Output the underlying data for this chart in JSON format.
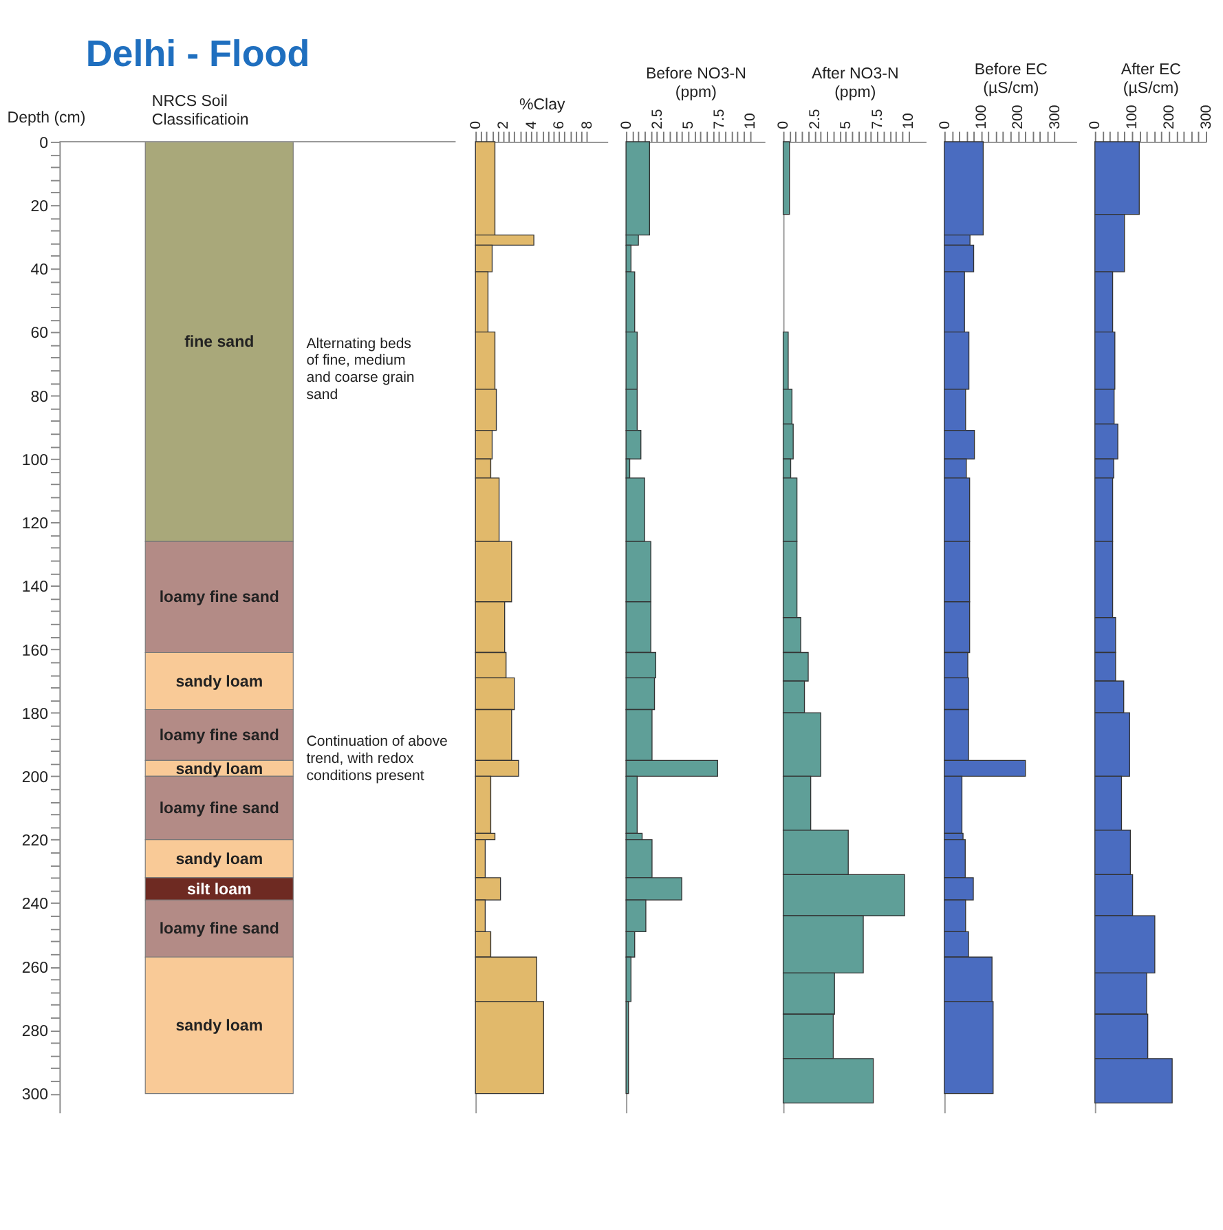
{
  "chart_data": [
    {
      "type": "bar",
      "stacked": true,
      "title": "Delhi - Flood",
      "xlabel": "NRCS Soil\nClassificatioin",
      "ylabel": "Depth (cm)",
      "categories": [
        null
      ],
      "ylim": [
        306,
        0
      ],
      "yticks": [
        0,
        {
          "value": 4,
          "label": null
        },
        {
          "value": 8,
          "label": null
        },
        {
          "value": 12,
          "label": null
        },
        {
          "value": 16,
          "label": null
        },
        20,
        {
          "value": 24,
          "label": null
        },
        {
          "value": 28,
          "label": null
        },
        {
          "value": 32,
          "label": null
        },
        {
          "value": 36,
          "label": null
        },
        40,
        {
          "value": 44,
          "label": null
        },
        {
          "value": 48,
          "label": null
        },
        {
          "value": 52,
          "label": null
        },
        {
          "value": 56,
          "label": null
        },
        60,
        {
          "value": 64,
          "label": null
        },
        {
          "value": 68,
          "label": null
        },
        {
          "value": 72,
          "label": null
        },
        {
          "value": 76,
          "label": null
        },
        80,
        {
          "value": 84,
          "label": null
        },
        {
          "value": 88,
          "label": null
        },
        {
          "value": 92,
          "label": null
        },
        {
          "value": 96,
          "label": null
        },
        100,
        {
          "value": 104,
          "label": null
        },
        {
          "value": 108,
          "label": null
        },
        {
          "value": 112,
          "label": null
        },
        {
          "value": 116,
          "label": null
        },
        120,
        {
          "value": 124,
          "label": null
        },
        {
          "value": 128,
          "label": null
        },
        {
          "value": 132,
          "label": null
        },
        {
          "value": 136,
          "label": null
        },
        140,
        {
          "value": 144,
          "label": null
        },
        {
          "value": 148,
          "label": null
        },
        {
          "value": 152,
          "label": null
        },
        {
          "value": 156,
          "label": null
        },
        160,
        {
          "value": 164,
          "label": null
        },
        {
          "value": 168,
          "label": null
        },
        {
          "value": 172,
          "label": null
        },
        {
          "value": 176,
          "label": null
        },
        180,
        {
          "value": 184,
          "label": null
        },
        {
          "value": 188,
          "label": null
        },
        {
          "value": 192,
          "label": null
        },
        {
          "value": 196,
          "label": null
        },
        200,
        {
          "value": 204,
          "label": null
        },
        {
          "value": 208,
          "label": null
        },
        {
          "value": 212,
          "label": null
        },
        {
          "value": 216,
          "label": null
        },
        220,
        {
          "value": 224,
          "label": null
        },
        {
          "value": 228,
          "label": null
        },
        {
          "value": 232,
          "label": null
        },
        {
          "value": 236,
          "label": null
        },
        240,
        {
          "value": 244,
          "label": null
        },
        {
          "value": 248,
          "label": null
        },
        {
          "value": 252,
          "label": null
        },
        {
          "value": 256,
          "label": null
        },
        260,
        {
          "value": 264,
          "label": null
        },
        {
          "value": 268,
          "label": null
        },
        {
          "value": 272,
          "label": null
        },
        {
          "value": 276,
          "label": null
        },
        280,
        {
          "value": 284,
          "label": null
        },
        {
          "value": 288,
          "label": null
        },
        {
          "value": 292,
          "label": null
        },
        {
          "value": 296,
          "label": null
        },
        300
      ],
      "series": [
        {
          "name": "fine sand",
          "color": "#a9a87a",
          "values": [
            126
          ]
        },
        {
          "name": "loamy fine sand",
          "color": "#b38b86",
          "values": [
            35
          ]
        },
        {
          "name": "sandy loam",
          "color": "#f9ca97",
          "values": [
            18
          ]
        },
        {
          "name": "loamy fine sand",
          "color": "#b38b86",
          "values": [
            16
          ]
        },
        {
          "name": "sandy loam",
          "color": "#f9ca97",
          "values": [
            5
          ]
        },
        {
          "name": "loamy fine sand",
          "color": "#b38b86",
          "values": [
            20
          ]
        },
        {
          "name": "sandy loam",
          "color": "#f9ca97",
          "values": [
            12
          ]
        },
        {
          "name": "silt loam",
          "color": "#6e2a22",
          "values": [
            7
          ]
        },
        {
          "name": "loamy fine sand",
          "color": "#b38b86",
          "values": [
            18
          ]
        },
        {
          "name": "sandy loam",
          "color": "#f9ca97",
          "values": [
            43
          ]
        }
      ],
      "annotations": [
        "Alternating beds\nof fine, medium\nand coarse grain\nsand",
        "Continuation of above\ntrend, with redox\nconditions present"
      ]
    },
    {
      "type": "histogram",
      "orientation": "horizontal",
      "xlabel": "%Clay",
      "color": "#e1b96b",
      "tick_labels": "x",
      "xlim": [
        0,
        9.5
      ],
      "ylim": [
        306,
        0
      ],
      "xticks": [
        0,
        {
          "value": 0.4,
          "label": null
        },
        {
          "value": 0.8,
          "label": null
        },
        {
          "value": 1.2,
          "label": null
        },
        {
          "value": 1.6,
          "label": null
        },
        2,
        {
          "value": 2.4,
          "label": null
        },
        {
          "value": 2.8,
          "label": null
        },
        {
          "value": 3.2,
          "label": null
        },
        {
          "value": 3.6,
          "label": null
        },
        4,
        {
          "value": 4.4,
          "label": null
        },
        {
          "value": 4.8,
          "label": null
        },
        {
          "value": 5.2,
          "label": null
        },
        {
          "value": 5.6,
          "label": null
        },
        6,
        {
          "value": 6.4,
          "label": null
        },
        {
          "value": 6.8,
          "label": null
        },
        {
          "value": 7.2,
          "label": null
        },
        {
          "value": 7.6,
          "label": null
        },
        8
      ],
      "bins": [
        0,
        29.4,
        32.6,
        41,
        60,
        78,
        91,
        100,
        106,
        126,
        145,
        161,
        169,
        179,
        195,
        200,
        218,
        220,
        232,
        239,
        249,
        257,
        271,
        300
      ],
      "values": [
        1.4,
        4.2,
        1.2,
        0.9,
        1.4,
        1.5,
        1.2,
        1.1,
        1.7,
        2.6,
        2.1,
        2.2,
        2.8,
        2.6,
        3.1,
        1.1,
        1.4,
        0.7,
        1.8,
        0.7,
        1.1,
        4.4,
        4.9
      ]
    },
    {
      "type": "histogram",
      "orientation": "horizontal",
      "xlabel": "Before NO3-N\n(ppm)",
      "color": "#5f9f98",
      "tick_labels": "x",
      "xlim": [
        0,
        11.2
      ],
      "ylim": [
        306,
        0
      ],
      "xticks": [
        0,
        {
          "value": 0.5,
          "label": null
        },
        {
          "value": 1,
          "label": null
        },
        {
          "value": 1.5,
          "label": null
        },
        {
          "value": 2,
          "label": null
        },
        2.5,
        {
          "value": 3,
          "label": null
        },
        {
          "value": 3.5,
          "label": null
        },
        {
          "value": 4,
          "label": null
        },
        {
          "value": 4.5,
          "label": null
        },
        5,
        {
          "value": 5.5,
          "label": null
        },
        {
          "value": 6,
          "label": null
        },
        {
          "value": 6.5,
          "label": null
        },
        {
          "value": 7,
          "label": null
        },
        7.5,
        {
          "value": 8,
          "label": null
        },
        {
          "value": 8.5,
          "label": null
        },
        {
          "value": 9,
          "label": null
        },
        {
          "value": 9.5,
          "label": null
        },
        10
      ],
      "bins": [
        0,
        29.4,
        32.6,
        41,
        60,
        78,
        91,
        100,
        106,
        126,
        145,
        161,
        169,
        179,
        195,
        200,
        218,
        220,
        232,
        239,
        249,
        257,
        271,
        300
      ],
      "values": [
        1.9,
        1.0,
        0.4,
        0.7,
        0.9,
        0.9,
        1.2,
        0.3,
        1.5,
        2.0,
        2.0,
        2.4,
        2.3,
        2.1,
        7.4,
        0.9,
        1.3,
        2.1,
        4.5,
        1.6,
        0.7,
        0.4,
        0.2
      ]
    },
    {
      "type": "histogram",
      "orientation": "horizontal",
      "xlabel": "After NO3-N\n(ppm)",
      "color": "#5f9f98",
      "tick_labels": "x",
      "xlim": [
        0,
        11.4
      ],
      "ylim": [
        306,
        0
      ],
      "xticks": [
        0,
        {
          "value": 0.5,
          "label": null
        },
        {
          "value": 1,
          "label": null
        },
        {
          "value": 1.5,
          "label": null
        },
        {
          "value": 2,
          "label": null
        },
        2.5,
        {
          "value": 3,
          "label": null
        },
        {
          "value": 3.5,
          "label": null
        },
        {
          "value": 4,
          "label": null
        },
        {
          "value": 4.5,
          "label": null
        },
        5,
        {
          "value": 5.5,
          "label": null
        },
        {
          "value": 6,
          "label": null
        },
        {
          "value": 6.5,
          "label": null
        },
        {
          "value": 7,
          "label": null
        },
        7.5,
        {
          "value": 8,
          "label": null
        },
        {
          "value": 8.5,
          "label": null
        },
        {
          "value": 9,
          "label": null
        },
        {
          "value": 9.5,
          "label": null
        },
        10
      ],
      "bins": [
        0,
        22.9,
        60,
        78,
        89,
        100,
        106,
        126,
        150,
        161,
        170,
        180,
        200,
        217,
        231,
        244,
        262,
        275,
        289,
        303
      ],
      "values": [
        0.5,
        null,
        0.4,
        0.7,
        0.8,
        0.6,
        1.1,
        1.1,
        1.4,
        2.0,
        1.7,
        3.0,
        2.2,
        5.2,
        9.7,
        6.4,
        4.1,
        4.0,
        7.2
      ]
    },
    {
      "type": "histogram",
      "orientation": "horizontal",
      "xlabel": "Before EC\n(µS/cm)",
      "color": "#4a6cc0",
      "tick_labels": "x",
      "xlim": [
        0,
        360
      ],
      "ylim": [
        306,
        0
      ],
      "xticks": [
        0,
        {
          "value": 20,
          "label": null
        },
        {
          "value": 40,
          "label": null
        },
        {
          "value": 60,
          "label": null
        },
        {
          "value": 80,
          "label": null
        },
        100,
        {
          "value": 120,
          "label": null
        },
        {
          "value": 140,
          "label": null
        },
        {
          "value": 160,
          "label": null
        },
        {
          "value": 180,
          "label": null
        },
        200,
        {
          "value": 220,
          "label": null
        },
        {
          "value": 240,
          "label": null
        },
        {
          "value": 260,
          "label": null
        },
        {
          "value": 280,
          "label": null
        },
        300
      ],
      "bins": [
        0,
        29.4,
        32.6,
        41,
        60,
        78,
        91,
        100,
        106,
        126,
        145,
        161,
        169,
        179,
        195,
        200,
        218,
        220,
        232,
        239,
        249,
        257,
        271,
        300
      ],
      "values": [
        106,
        70,
        80,
        55,
        67,
        58,
        82,
        60,
        69,
        69,
        69,
        64,
        66,
        66,
        221,
        48,
        51,
        57,
        79,
        58,
        66,
        130,
        133
      ]
    },
    {
      "type": "histogram",
      "orientation": "horizontal",
      "xlabel": "After EC\n(µS/cm)",
      "color": "#4a6cc0",
      "tick_labels": "x",
      "xlim": [
        0,
        300
      ],
      "ylim": [
        306,
        0
      ],
      "xticks": [
        0,
        {
          "value": 20,
          "label": null
        },
        {
          "value": 40,
          "label": null
        },
        {
          "value": 60,
          "label": null
        },
        {
          "value": 80,
          "label": null
        },
        100,
        {
          "value": 120,
          "label": null
        },
        {
          "value": 140,
          "label": null
        },
        {
          "value": 160,
          "label": null
        },
        {
          "value": 180,
          "label": null
        },
        200,
        {
          "value": 220,
          "label": null
        },
        {
          "value": 240,
          "label": null
        },
        {
          "value": 260,
          "label": null
        },
        {
          "value": 280,
          "label": null
        },
        300
      ],
      "bins": [
        0,
        22.9,
        41,
        60,
        78,
        89,
        100,
        106,
        126,
        150,
        161,
        170,
        180,
        200,
        217,
        231,
        244,
        262,
        275,
        289,
        303
      ],
      "values": [
        120,
        80,
        48,
        54,
        52,
        62,
        51,
        48,
        48,
        56,
        56,
        78,
        94,
        72,
        96,
        102,
        162,
        140,
        143,
        209
      ]
    }
  ]
}
